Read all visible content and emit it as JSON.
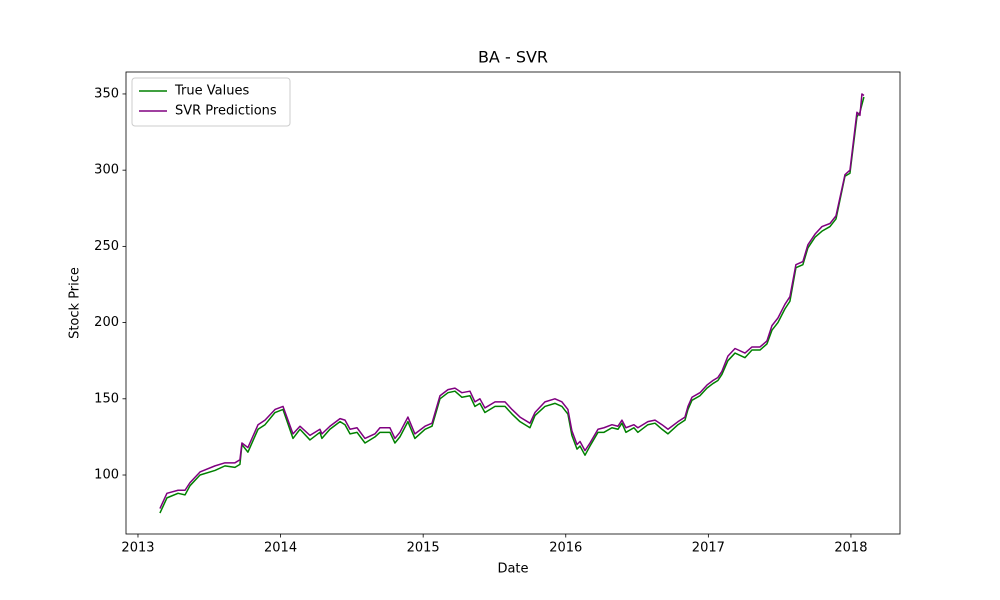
{
  "chart_data": {
    "type": "line",
    "title": "BA - SVR",
    "xlabel": "Date",
    "ylabel": "Stock Price",
    "legend": "upper left",
    "grid": false,
    "xlim": [
      2012.916,
      2018.344
    ],
    "xticks": [
      2013,
      2014,
      2015,
      2016,
      2017,
      2018
    ],
    "ylim": [
      61.3,
      364.4
    ],
    "yticks": [
      100,
      150,
      200,
      250,
      300,
      350
    ],
    "x": [
      2013.154,
      2013.203,
      2013.281,
      2013.33,
      2013.365,
      2013.435,
      2013.54,
      2013.61,
      2013.68,
      2013.715,
      2013.729,
      2013.771,
      2013.842,
      2013.891,
      2013.961,
      2014.017,
      2014.087,
      2014.136,
      2014.206,
      2014.276,
      2014.29,
      2014.346,
      2014.417,
      2014.452,
      2014.487,
      2014.536,
      2014.592,
      2014.662,
      2014.697,
      2014.767,
      2014.802,
      2014.837,
      2014.893,
      2014.942,
      2015.013,
      2015.062,
      2015.118,
      2015.174,
      2015.223,
      2015.272,
      2015.328,
      2015.363,
      2015.398,
      2015.433,
      2015.504,
      2015.574,
      2015.623,
      2015.679,
      2015.749,
      2015.784,
      2015.854,
      2015.924,
      2015.973,
      2016.015,
      2016.043,
      2016.079,
      2016.1,
      2016.135,
      2016.17,
      2016.226,
      2016.268,
      2016.324,
      2016.366,
      2016.394,
      2016.422,
      2016.478,
      2016.506,
      2016.576,
      2016.626,
      2016.675,
      2016.717,
      2016.787,
      2016.836,
      2016.857,
      2016.885,
      2016.941,
      2016.99,
      2017.032,
      2017.067,
      2017.095,
      2017.137,
      2017.187,
      2017.257,
      2017.306,
      2017.362,
      2017.411,
      2017.446,
      2017.488,
      2017.537,
      2017.572,
      2017.614,
      2017.663,
      2017.698,
      2017.748,
      2017.797,
      2017.853,
      2017.895,
      2017.958,
      2017.993,
      2018.042,
      2018.063,
      2018.077,
      2018.091
    ],
    "series": [
      {
        "name": "True Values",
        "color": "#008000",
        "values": [
          75,
          85,
          88,
          87,
          93,
          100,
          103,
          106,
          105,
          107,
          120,
          115,
          130,
          133,
          141,
          143,
          124,
          130,
          123,
          128,
          124,
          130,
          135,
          133,
          127,
          128,
          121,
          125,
          128,
          128,
          121,
          125,
          135,
          124,
          130,
          132,
          150,
          154,
          155,
          151,
          152,
          145,
          147,
          141,
          145,
          145,
          140,
          135,
          131,
          139,
          145,
          147,
          145,
          140,
          126,
          117,
          119,
          113,
          119,
          128,
          128,
          131,
          130,
          134,
          128,
          131,
          128,
          133,
          134,
          130,
          127,
          133,
          136,
          143,
          149,
          152,
          157,
          160,
          162,
          166,
          175,
          180,
          177,
          182,
          182,
          186,
          195,
          200,
          209,
          214,
          236,
          238,
          249,
          256,
          260,
          263,
          268,
          296,
          298,
          335,
          338,
          343,
          348
        ]
      },
      {
        "name": "SVR Predictions",
        "color": "#800080",
        "values": [
          78,
          88,
          90,
          90,
          95,
          102,
          106,
          108,
          108,
          110,
          121,
          118,
          133,
          136,
          143,
          145,
          127,
          132,
          126,
          130,
          127,
          132,
          137,
          136,
          130,
          131,
          124,
          127,
          131,
          131,
          124,
          128,
          138,
          127,
          132,
          134,
          152,
          156,
          157,
          154,
          155,
          148,
          150,
          144,
          148,
          148,
          143,
          138,
          134,
          141,
          148,
          150,
          148,
          143,
          129,
          120,
          122,
          116,
          121,
          130,
          131,
          133,
          132,
          136,
          131,
          133,
          131,
          135,
          136,
          133,
          130,
          135,
          138,
          145,
          151,
          154,
          159,
          162,
          164,
          168,
          178,
          183,
          180,
          184,
          184,
          188,
          198,
          203,
          212,
          217,
          238,
          240,
          251,
          258,
          263,
          265,
          270,
          297,
          300,
          338,
          336,
          350,
          349
        ]
      }
    ]
  }
}
